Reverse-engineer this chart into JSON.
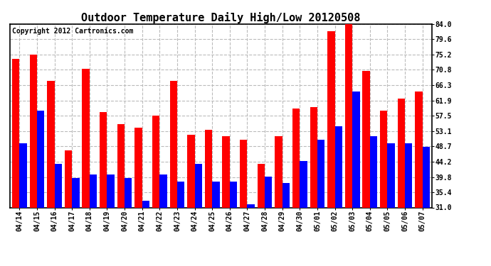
{
  "title": "Outdoor Temperature Daily High/Low 20120508",
  "copyright": "Copyright 2012 Cartronics.com",
  "dates": [
    "04/14",
    "04/15",
    "04/16",
    "04/17",
    "04/18",
    "04/19",
    "04/20",
    "04/21",
    "04/22",
    "04/23",
    "04/24",
    "04/25",
    "04/26",
    "04/27",
    "04/28",
    "04/29",
    "04/30",
    "05/01",
    "05/02",
    "05/03",
    "05/04",
    "05/05",
    "05/06",
    "05/07"
  ],
  "highs": [
    74.0,
    75.2,
    67.5,
    47.5,
    71.0,
    58.5,
    55.0,
    54.0,
    57.5,
    67.5,
    52.0,
    53.5,
    51.5,
    50.5,
    43.5,
    51.5,
    59.5,
    60.0,
    82.0,
    84.0,
    70.5,
    59.0,
    62.5,
    64.5
  ],
  "lows": [
    49.5,
    59.0,
    43.5,
    39.5,
    40.5,
    40.5,
    39.5,
    33.0,
    40.5,
    38.5,
    43.5,
    38.5,
    38.5,
    32.0,
    40.0,
    38.0,
    44.5,
    50.5,
    54.5,
    64.5,
    51.5,
    49.5,
    49.5,
    48.5
  ],
  "high_color": "#ff0000",
  "low_color": "#0000ff",
  "ylim_min": 31.0,
  "ylim_max": 84.0,
  "yticks": [
    31.0,
    35.4,
    39.8,
    44.2,
    48.7,
    53.1,
    57.5,
    61.9,
    66.3,
    70.8,
    75.2,
    79.6,
    84.0
  ],
  "background_color": "#ffffff",
  "grid_color": "#bbbbbb",
  "title_fontsize": 11,
  "copyright_fontsize": 7,
  "tick_fontsize": 7,
  "bar_width": 0.42
}
